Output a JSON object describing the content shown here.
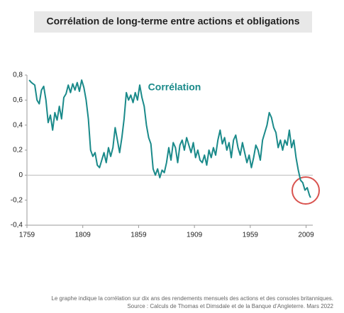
{
  "chart_data": {
    "type": "line",
    "title": "Corrélation de long-terme entre actions et obligations",
    "annotation": "Corrélation",
    "note": "Le graphe indique la corrélation sur dix ans des rendements mensuels des actions et des consoles britanniques.",
    "source": "Source : Calculs de Thomas et Dimsdale et de la Banque d’Angleterre. Mars 2022",
    "xlim": [
      1759,
      2015
    ],
    "xticks": [
      1759,
      1809,
      1859,
      1909,
      1959,
      2009
    ],
    "ylim": [
      -0.4,
      0.8
    ],
    "yticks": [
      {
        "value": -0.4,
        "label": "-0,4"
      },
      {
        "value": -0.2,
        "label": "-0,2"
      },
      {
        "value": 0,
        "label": "0"
      },
      {
        "value": 0.2,
        "label": "0,2"
      },
      {
        "value": 0.4,
        "label": "0,4"
      },
      {
        "value": 0.6,
        "label": "0,6"
      },
      {
        "value": 0.8,
        "label": "0,8"
      }
    ],
    "grid": false,
    "x": [
      1761,
      1763,
      1766,
      1768,
      1770,
      1772,
      1774,
      1776,
      1778,
      1780,
      1782,
      1784,
      1786,
      1788,
      1790,
      1792,
      1794,
      1796,
      1798,
      1800,
      1802,
      1804,
      1806,
      1808,
      1810,
      1812,
      1814,
      1816,
      1818,
      1820,
      1822,
      1824,
      1826,
      1828,
      1830,
      1832,
      1834,
      1836,
      1838,
      1840,
      1842,
      1844,
      1846,
      1848,
      1850,
      1852,
      1854,
      1856,
      1858,
      1860,
      1862,
      1864,
      1866,
      1868,
      1870,
      1872,
      1874,
      1876,
      1878,
      1880,
      1882,
      1884,
      1886,
      1888,
      1890,
      1892,
      1894,
      1896,
      1898,
      1900,
      1902,
      1904,
      1906,
      1908,
      1910,
      1912,
      1914,
      1916,
      1918,
      1920,
      1922,
      1924,
      1926,
      1928,
      1930,
      1932,
      1934,
      1936,
      1938,
      1940,
      1942,
      1944,
      1946,
      1948,
      1950,
      1952,
      1954,
      1956,
      1958,
      1960,
      1962,
      1964,
      1966,
      1968,
      1970,
      1972,
      1974,
      1976,
      1978,
      1980,
      1982,
      1984,
      1986,
      1988,
      1990,
      1992,
      1994,
      1996,
      1998,
      2000,
      2002,
      2004,
      2006,
      2008,
      2010,
      2012,
      2013
    ],
    "series": [
      {
        "name": "Corrélation",
        "color": "#1a8a8a",
        "values": [
          0.76,
          0.74,
          0.72,
          0.6,
          0.57,
          0.68,
          0.71,
          0.6,
          0.42,
          0.48,
          0.36,
          0.5,
          0.44,
          0.55,
          0.45,
          0.62,
          0.65,
          0.72,
          0.66,
          0.73,
          0.68,
          0.74,
          0.67,
          0.76,
          0.7,
          0.6,
          0.45,
          0.2,
          0.15,
          0.18,
          0.08,
          0.06,
          0.12,
          0.18,
          0.1,
          0.22,
          0.15,
          0.22,
          0.38,
          0.28,
          0.18,
          0.3,
          0.45,
          0.66,
          0.6,
          0.64,
          0.58,
          0.66,
          0.6,
          0.72,
          0.62,
          0.55,
          0.4,
          0.3,
          0.25,
          0.05,
          0.0,
          0.05,
          -0.02,
          0.04,
          0.02,
          0.1,
          0.22,
          0.12,
          0.26,
          0.22,
          0.1,
          0.24,
          0.28,
          0.2,
          0.3,
          0.24,
          0.18,
          0.26,
          0.14,
          0.2,
          0.12,
          0.1,
          0.16,
          0.08,
          0.2,
          0.14,
          0.22,
          0.16,
          0.28,
          0.36,
          0.25,
          0.3,
          0.2,
          0.26,
          0.14,
          0.28,
          0.32,
          0.22,
          0.16,
          0.26,
          0.18,
          0.1,
          0.16,
          0.06,
          0.14,
          0.24,
          0.2,
          0.12,
          0.28,
          0.34,
          0.4,
          0.5,
          0.46,
          0.38,
          0.34,
          0.22,
          0.28,
          0.2,
          0.28,
          0.24,
          0.36,
          0.22,
          0.28,
          0.14,
          0.04,
          -0.04,
          -0.06,
          -0.12,
          -0.1,
          -0.16,
          -0.18
        ]
      }
    ]
  }
}
